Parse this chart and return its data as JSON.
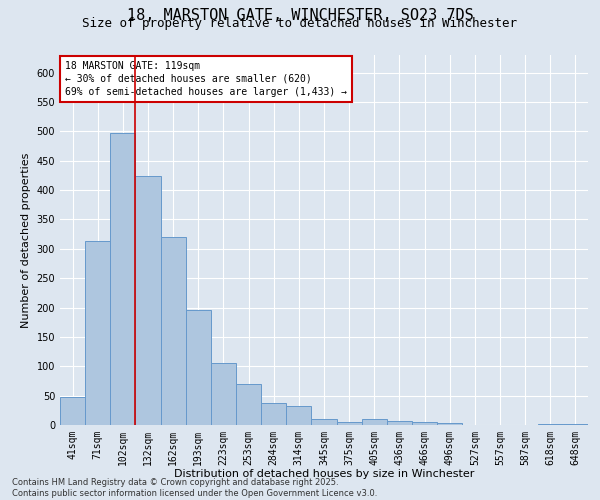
{
  "title_line1": "18, MARSTON GATE, WINCHESTER, SO23 7DS",
  "title_line2": "Size of property relative to detached houses in Winchester",
  "xlabel": "Distribution of detached houses by size in Winchester",
  "ylabel": "Number of detached properties",
  "categories": [
    "41sqm",
    "71sqm",
    "102sqm",
    "132sqm",
    "162sqm",
    "193sqm",
    "223sqm",
    "253sqm",
    "284sqm",
    "314sqm",
    "345sqm",
    "375sqm",
    "405sqm",
    "436sqm",
    "466sqm",
    "496sqm",
    "527sqm",
    "557sqm",
    "587sqm",
    "618sqm",
    "648sqm"
  ],
  "values": [
    47,
    313,
    497,
    424,
    320,
    195,
    105,
    70,
    38,
    33,
    10,
    5,
    11,
    7,
    5,
    3,
    0,
    0,
    0,
    1,
    2
  ],
  "bar_color": "#aec6df",
  "bar_edge_color": "#6699cc",
  "bg_color": "#dde6f0",
  "grid_color": "#ffffff",
  "vline_color": "#cc0000",
  "vline_x_index": 2,
  "annotation_box_text": "18 MARSTON GATE: 119sqm\n← 30% of detached houses are smaller (620)\n69% of semi-detached houses are larger (1,433) →",
  "annotation_box_color": "#cc0000",
  "annotation_box_bg": "#ffffff",
  "ylim": [
    0,
    630
  ],
  "yticks": [
    0,
    50,
    100,
    150,
    200,
    250,
    300,
    350,
    400,
    450,
    500,
    550,
    600
  ],
  "footer_line1": "Contains HM Land Registry data © Crown copyright and database right 2025.",
  "footer_line2": "Contains public sector information licensed under the Open Government Licence v3.0.",
  "title_fontsize": 11,
  "subtitle_fontsize": 9,
  "tick_fontsize": 7,
  "label_fontsize": 8,
  "annotation_fontsize": 7,
  "footer_fontsize": 6
}
